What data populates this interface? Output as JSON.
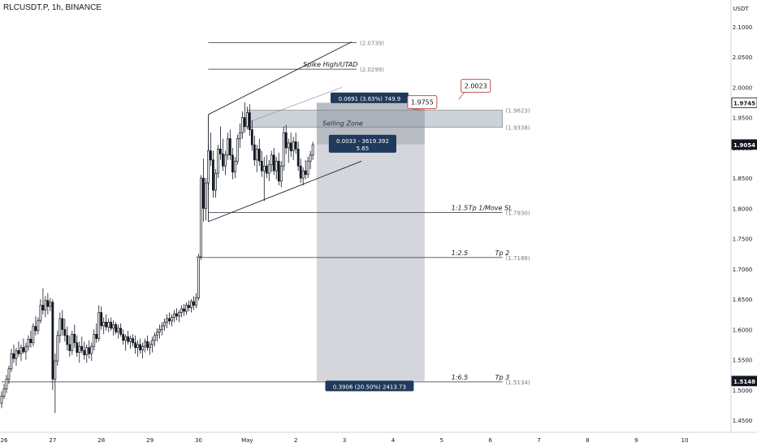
{
  "header": {
    "symbol": "RLCUSDT.P, 1h, BINANCE"
  },
  "price_axis": {
    "unit": "USDT"
  },
  "chart_data": {
    "type": "candlestick",
    "title": "RLCUSDT.P, 1h, BINANCE",
    "y_unit": "USDT",
    "ylim": [
      1.43,
      2.12
    ],
    "y_ticks": [
      "2.1000",
      "2.0500",
      "2.0000",
      "1.9500",
      "1.9000",
      "1.8500",
      "1.8000",
      "1.7500",
      "1.7000",
      "1.6500",
      "1.6000",
      "1.5500",
      "1.5000",
      "1.4500"
    ],
    "x_ticks": [
      "26",
      "27",
      "28",
      "29",
      "30",
      "May",
      "2",
      "3",
      "4",
      "5",
      "6",
      "7",
      "8",
      "9",
      "10"
    ],
    "x_tick_days": [
      0,
      1,
      2,
      3,
      4,
      5,
      6,
      7,
      8,
      9,
      10,
      11,
      12,
      13,
      14
    ],
    "xlim_days": [
      0.0,
      15.0
    ],
    "colors": {
      "up": "#26a69a",
      "down": "#ef5350",
      "candle": "#131722",
      "line": "#2a2e39",
      "zone": "#9aa5b1",
      "projection": "#b2b5be",
      "label_bg": "#131722",
      "label_fg": "#ffffff"
    },
    "candles": [
      {
        "t": 0.0,
        "o": 1.478,
        "h": 1.498,
        "l": 1.47,
        "c": 1.49
      },
      {
        "t": 0.05,
        "o": 1.49,
        "h": 1.51,
        "l": 1.485,
        "c": 1.502
      },
      {
        "t": 0.1,
        "o": 1.502,
        "h": 1.525,
        "l": 1.495,
        "c": 1.518
      },
      {
        "t": 0.15,
        "o": 1.518,
        "h": 1.54,
        "l": 1.51,
        "c": 1.535
      },
      {
        "t": 0.2,
        "o": 1.535,
        "h": 1.568,
        "l": 1.53,
        "c": 1.56
      },
      {
        "t": 0.25,
        "o": 1.56,
        "h": 1.575,
        "l": 1.545,
        "c": 1.552
      },
      {
        "t": 0.3,
        "o": 1.552,
        "h": 1.57,
        "l": 1.54,
        "c": 1.565
      },
      {
        "t": 0.35,
        "o": 1.565,
        "h": 1.58,
        "l": 1.555,
        "c": 1.56
      },
      {
        "t": 0.4,
        "o": 1.56,
        "h": 1.575,
        "l": 1.548,
        "c": 1.57
      },
      {
        "t": 0.45,
        "o": 1.57,
        "h": 1.585,
        "l": 1.56,
        "c": 1.563
      },
      {
        "t": 0.5,
        "o": 1.563,
        "h": 1.578,
        "l": 1.55,
        "c": 1.572
      },
      {
        "t": 0.55,
        "o": 1.572,
        "h": 1.59,
        "l": 1.565,
        "c": 1.584
      },
      {
        "t": 0.6,
        "o": 1.584,
        "h": 1.598,
        "l": 1.57,
        "c": 1.578
      },
      {
        "t": 0.65,
        "o": 1.578,
        "h": 1.61,
        "l": 1.572,
        "c": 1.605
      },
      {
        "t": 0.7,
        "o": 1.605,
        "h": 1.622,
        "l": 1.59,
        "c": 1.598
      },
      {
        "t": 0.75,
        "o": 1.598,
        "h": 1.62,
        "l": 1.592,
        "c": 1.615
      },
      {
        "t": 0.8,
        "o": 1.615,
        "h": 1.65,
        "l": 1.61,
        "c": 1.64
      },
      {
        "t": 0.85,
        "o": 1.64,
        "h": 1.668,
        "l": 1.625,
        "c": 1.632
      },
      {
        "t": 0.9,
        "o": 1.632,
        "h": 1.655,
        "l": 1.62,
        "c": 1.648
      },
      {
        "t": 0.95,
        "o": 1.648,
        "h": 1.66,
        "l": 1.625,
        "c": 1.638
      },
      {
        "t": 1.0,
        "o": 1.638,
        "h": 1.652,
        "l": 1.63,
        "c": 1.645
      },
      {
        "t": 1.05,
        "o": 1.645,
        "h": 1.65,
        "l": 1.5,
        "c": 1.518
      },
      {
        "t": 1.1,
        "o": 1.518,
        "h": 1.56,
        "l": 1.462,
        "c": 1.548
      },
      {
        "t": 1.15,
        "o": 1.548,
        "h": 1.598,
        "l": 1.54,
        "c": 1.59
      },
      {
        "t": 1.2,
        "o": 1.59,
        "h": 1.628,
        "l": 1.578,
        "c": 1.618
      },
      {
        "t": 1.25,
        "o": 1.618,
        "h": 1.632,
        "l": 1.59,
        "c": 1.6
      },
      {
        "t": 1.3,
        "o": 1.6,
        "h": 1.618,
        "l": 1.58,
        "c": 1.59
      },
      {
        "t": 1.35,
        "o": 1.59,
        "h": 1.605,
        "l": 1.565,
        "c": 1.575
      },
      {
        "t": 1.4,
        "o": 1.575,
        "h": 1.59,
        "l": 1.555,
        "c": 1.565
      },
      {
        "t": 1.45,
        "o": 1.565,
        "h": 1.598,
        "l": 1.558,
        "c": 1.592
      },
      {
        "t": 1.5,
        "o": 1.592,
        "h": 1.608,
        "l": 1.57,
        "c": 1.578
      },
      {
        "t": 1.55,
        "o": 1.578,
        "h": 1.59,
        "l": 1.555,
        "c": 1.562
      },
      {
        "t": 1.6,
        "o": 1.562,
        "h": 1.58,
        "l": 1.545,
        "c": 1.572
      },
      {
        "t": 1.65,
        "o": 1.572,
        "h": 1.588,
        "l": 1.56,
        "c": 1.565
      },
      {
        "t": 1.7,
        "o": 1.565,
        "h": 1.58,
        "l": 1.55,
        "c": 1.558
      },
      {
        "t": 1.75,
        "o": 1.558,
        "h": 1.575,
        "l": 1.545,
        "c": 1.57
      },
      {
        "t": 1.8,
        "o": 1.57,
        "h": 1.582,
        "l": 1.552,
        "c": 1.56
      },
      {
        "t": 1.85,
        "o": 1.56,
        "h": 1.578,
        "l": 1.548,
        "c": 1.572
      },
      {
        "t": 1.9,
        "o": 1.572,
        "h": 1.6,
        "l": 1.565,
        "c": 1.592
      },
      {
        "t": 1.95,
        "o": 1.592,
        "h": 1.61,
        "l": 1.578,
        "c": 1.585
      },
      {
        "t": 2.0,
        "o": 1.585,
        "h": 1.64,
        "l": 1.58,
        "c": 1.628
      },
      {
        "t": 2.05,
        "o": 1.628,
        "h": 1.638,
        "l": 1.6,
        "c": 1.606
      },
      {
        "t": 2.1,
        "o": 1.606,
        "h": 1.62,
        "l": 1.592,
        "c": 1.612
      },
      {
        "t": 2.15,
        "o": 1.612,
        "h": 1.625,
        "l": 1.598,
        "c": 1.604
      },
      {
        "t": 2.2,
        "o": 1.604,
        "h": 1.618,
        "l": 1.595,
        "c": 1.612
      },
      {
        "t": 2.25,
        "o": 1.612,
        "h": 1.62,
        "l": 1.598,
        "c": 1.602
      },
      {
        "t": 2.3,
        "o": 1.602,
        "h": 1.615,
        "l": 1.59,
        "c": 1.608
      },
      {
        "t": 2.35,
        "o": 1.608,
        "h": 1.612,
        "l": 1.592,
        "c": 1.596
      },
      {
        "t": 2.4,
        "o": 1.596,
        "h": 1.608,
        "l": 1.585,
        "c": 1.602
      },
      {
        "t": 2.45,
        "o": 1.602,
        "h": 1.61,
        "l": 1.588,
        "c": 1.592
      },
      {
        "t": 2.5,
        "o": 1.592,
        "h": 1.6,
        "l": 1.575,
        "c": 1.582
      },
      {
        "t": 2.55,
        "o": 1.582,
        "h": 1.592,
        "l": 1.565,
        "c": 1.588
      },
      {
        "t": 2.6,
        "o": 1.588,
        "h": 1.598,
        "l": 1.575,
        "c": 1.58
      },
      {
        "t": 2.65,
        "o": 1.58,
        "h": 1.59,
        "l": 1.568,
        "c": 1.585
      },
      {
        "t": 2.7,
        "o": 1.585,
        "h": 1.592,
        "l": 1.572,
        "c": 1.578
      },
      {
        "t": 2.75,
        "o": 1.578,
        "h": 1.59,
        "l": 1.56,
        "c": 1.57
      },
      {
        "t": 2.8,
        "o": 1.57,
        "h": 1.582,
        "l": 1.555,
        "c": 1.575
      },
      {
        "t": 2.85,
        "o": 1.575,
        "h": 1.585,
        "l": 1.56,
        "c": 1.566
      },
      {
        "t": 2.9,
        "o": 1.566,
        "h": 1.578,
        "l": 1.552,
        "c": 1.572
      },
      {
        "t": 2.95,
        "o": 1.572,
        "h": 1.585,
        "l": 1.562,
        "c": 1.58
      },
      {
        "t": 3.0,
        "o": 1.58,
        "h": 1.59,
        "l": 1.565,
        "c": 1.57
      },
      {
        "t": 3.05,
        "o": 1.57,
        "h": 1.58,
        "l": 1.558,
        "c": 1.575
      },
      {
        "t": 3.1,
        "o": 1.575,
        "h": 1.588,
        "l": 1.562,
        "c": 1.582
      },
      {
        "t": 3.15,
        "o": 1.582,
        "h": 1.595,
        "l": 1.572,
        "c": 1.59
      },
      {
        "t": 3.2,
        "o": 1.59,
        "h": 1.602,
        "l": 1.58,
        "c": 1.596
      },
      {
        "t": 3.25,
        "o": 1.596,
        "h": 1.608,
        "l": 1.585,
        "c": 1.6
      },
      {
        "t": 3.3,
        "o": 1.6,
        "h": 1.612,
        "l": 1.59,
        "c": 1.606
      },
      {
        "t": 3.35,
        "o": 1.606,
        "h": 1.618,
        "l": 1.598,
        "c": 1.612
      },
      {
        "t": 3.4,
        "o": 1.612,
        "h": 1.625,
        "l": 1.602,
        "c": 1.618
      },
      {
        "t": 3.45,
        "o": 1.618,
        "h": 1.628,
        "l": 1.608,
        "c": 1.614
      },
      {
        "t": 3.5,
        "o": 1.614,
        "h": 1.625,
        "l": 1.605,
        "c": 1.62
      },
      {
        "t": 3.55,
        "o": 1.62,
        "h": 1.632,
        "l": 1.612,
        "c": 1.626
      },
      {
        "t": 3.6,
        "o": 1.626,
        "h": 1.635,
        "l": 1.615,
        "c": 1.622
      },
      {
        "t": 3.65,
        "o": 1.622,
        "h": 1.632,
        "l": 1.612,
        "c": 1.628
      },
      {
        "t": 3.7,
        "o": 1.628,
        "h": 1.64,
        "l": 1.62,
        "c": 1.634
      },
      {
        "t": 3.75,
        "o": 1.634,
        "h": 1.642,
        "l": 1.622,
        "c": 1.63
      },
      {
        "t": 3.8,
        "o": 1.63,
        "h": 1.645,
        "l": 1.624,
        "c": 1.64
      },
      {
        "t": 3.85,
        "o": 1.64,
        "h": 1.648,
        "l": 1.63,
        "c": 1.636
      },
      {
        "t": 3.9,
        "o": 1.636,
        "h": 1.65,
        "l": 1.628,
        "c": 1.646
      },
      {
        "t": 3.95,
        "o": 1.646,
        "h": 1.655,
        "l": 1.632,
        "c": 1.64
      },
      {
        "t": 4.0,
        "o": 1.64,
        "h": 1.66,
        "l": 1.635,
        "c": 1.652
      },
      {
        "t": 4.05,
        "o": 1.652,
        "h": 1.725,
        "l": 1.648,
        "c": 1.72
      },
      {
        "t": 4.1,
        "o": 1.72,
        "h": 1.855,
        "l": 1.715,
        "c": 1.85
      },
      {
        "t": 4.15,
        "o": 1.85,
        "h": 1.882,
        "l": 1.778,
        "c": 1.8
      },
      {
        "t": 4.2,
        "o": 1.8,
        "h": 1.85,
        "l": 1.78,
        "c": 1.842
      },
      {
        "t": 4.25,
        "o": 1.842,
        "h": 1.905,
        "l": 1.83,
        "c": 1.895
      },
      {
        "t": 4.3,
        "o": 1.895,
        "h": 1.925,
        "l": 1.87,
        "c": 1.88
      },
      {
        "t": 4.35,
        "o": 1.88,
        "h": 1.895,
        "l": 1.818,
        "c": 1.83
      },
      {
        "t": 4.4,
        "o": 1.83,
        "h": 1.865,
        "l": 1.818,
        "c": 1.858
      },
      {
        "t": 4.45,
        "o": 1.858,
        "h": 1.905,
        "l": 1.85,
        "c": 1.898
      },
      {
        "t": 4.5,
        "o": 1.898,
        "h": 1.935,
        "l": 1.88,
        "c": 1.89
      },
      {
        "t": 4.55,
        "o": 1.89,
        "h": 1.915,
        "l": 1.862,
        "c": 1.87
      },
      {
        "t": 4.6,
        "o": 1.87,
        "h": 1.895,
        "l": 1.855,
        "c": 1.888
      },
      {
        "t": 4.65,
        "o": 1.888,
        "h": 1.925,
        "l": 1.88,
        "c": 1.915
      },
      {
        "t": 4.7,
        "o": 1.915,
        "h": 1.93,
        "l": 1.88,
        "c": 1.888
      },
      {
        "t": 4.75,
        "o": 1.888,
        "h": 1.9,
        "l": 1.848,
        "c": 1.86
      },
      {
        "t": 4.8,
        "o": 1.86,
        "h": 1.885,
        "l": 1.85,
        "c": 1.878
      },
      {
        "t": 4.85,
        "o": 1.878,
        "h": 1.922,
        "l": 1.872,
        "c": 1.915
      },
      {
        "t": 4.9,
        "o": 1.915,
        "h": 1.94,
        "l": 1.9,
        "c": 1.925
      },
      {
        "t": 4.95,
        "o": 1.925,
        "h": 1.96,
        "l": 1.915,
        "c": 1.95
      },
      {
        "t": 5.0,
        "o": 1.95,
        "h": 1.975,
        "l": 1.925,
        "c": 1.935
      },
      {
        "t": 5.05,
        "o": 1.935,
        "h": 1.968,
        "l": 1.93,
        "c": 1.958
      },
      {
        "t": 5.1,
        "o": 1.958,
        "h": 1.972,
        "l": 1.92,
        "c": 1.93
      },
      {
        "t": 5.15,
        "o": 1.93,
        "h": 1.945,
        "l": 1.895,
        "c": 1.905
      },
      {
        "t": 5.2,
        "o": 1.905,
        "h": 1.92,
        "l": 1.87,
        "c": 1.88
      },
      {
        "t": 5.25,
        "o": 1.88,
        "h": 1.905,
        "l": 1.86,
        "c": 1.898
      },
      {
        "t": 5.3,
        "o": 1.898,
        "h": 1.915,
        "l": 1.87,
        "c": 1.878
      },
      {
        "t": 5.35,
        "o": 1.878,
        "h": 1.895,
        "l": 1.852,
        "c": 1.862
      },
      {
        "t": 5.4,
        "o": 1.862,
        "h": 1.885,
        "l": 1.812,
        "c": 1.87
      },
      {
        "t": 5.45,
        "o": 1.87,
        "h": 1.888,
        "l": 1.85,
        "c": 1.858
      },
      {
        "t": 5.5,
        "o": 1.858,
        "h": 1.88,
        "l": 1.845,
        "c": 1.872
      },
      {
        "t": 5.55,
        "o": 1.872,
        "h": 1.895,
        "l": 1.86,
        "c": 1.888
      },
      {
        "t": 5.6,
        "o": 1.888,
        "h": 1.9,
        "l": 1.855,
        "c": 1.862
      },
      {
        "t": 5.65,
        "o": 1.862,
        "h": 1.885,
        "l": 1.848,
        "c": 1.878
      },
      {
        "t": 5.7,
        "o": 1.878,
        "h": 1.892,
        "l": 1.838,
        "c": 1.845
      },
      {
        "t": 5.75,
        "o": 1.845,
        "h": 1.878,
        "l": 1.835,
        "c": 1.87
      },
      {
        "t": 5.8,
        "o": 1.87,
        "h": 1.935,
        "l": 1.862,
        "c": 1.925
      },
      {
        "t": 5.85,
        "o": 1.925,
        "h": 1.938,
        "l": 1.89,
        "c": 1.9
      },
      {
        "t": 5.9,
        "o": 1.9,
        "h": 1.915,
        "l": 1.875,
        "c": 1.908
      },
      {
        "t": 5.95,
        "o": 1.908,
        "h": 1.925,
        "l": 1.885,
        "c": 1.895
      },
      {
        "t": 6.0,
        "o": 1.895,
        "h": 1.918,
        "l": 1.88,
        "c": 1.91
      },
      {
        "t": 6.05,
        "o": 1.91,
        "h": 1.925,
        "l": 1.89,
        "c": 1.898
      },
      {
        "t": 6.1,
        "o": 1.898,
        "h": 1.91,
        "l": 1.862,
        "c": 1.87
      },
      {
        "t": 6.15,
        "o": 1.87,
        "h": 1.882,
        "l": 1.842,
        "c": 1.85
      },
      {
        "t": 6.2,
        "o": 1.85,
        "h": 1.868,
        "l": 1.838,
        "c": 1.862
      },
      {
        "t": 6.25,
        "o": 1.862,
        "h": 1.88,
        "l": 1.848,
        "c": 1.856
      },
      {
        "t": 6.3,
        "o": 1.856,
        "h": 1.885,
        "l": 1.85,
        "c": 1.878
      },
      {
        "t": 6.35,
        "o": 1.878,
        "h": 1.895,
        "l": 1.865,
        "c": 1.888
      },
      {
        "t": 6.4,
        "o": 1.888,
        "h": 1.91,
        "l": 1.88,
        "c": 1.905
      }
    ],
    "annotations": {
      "channel": {
        "upper": [
          [
            4.25,
            1.955
          ],
          [
            7.2,
            2.075
          ]
        ],
        "lower": [
          [
            4.25,
            1.778
          ],
          [
            7.4,
            1.878
          ]
        ],
        "left": [
          [
            4.25,
            1.778
          ],
          [
            4.25,
            1.955
          ]
        ]
      },
      "mid_line": [
        [
          5.0,
          1.94
        ],
        [
          7.0,
          2.0
        ]
      ],
      "hlines": [
        {
          "y": 2.0739,
          "x0": 4.25,
          "x1": 7.3,
          "label": "(2.0739)",
          "name": ""
        },
        {
          "y": 2.0299,
          "x0": 4.25,
          "x1": 7.3,
          "label": "(2.0299)",
          "name": "Spike High/UTAD",
          "name_at": 6.2
        },
        {
          "y": 1.793,
          "x0": 4.25,
          "x1": 10.3,
          "label": "(1.7930)",
          "name": "Tp 1/Move SL",
          "name_at": 9.6,
          "ratio": "1:1.5",
          "ratio_at": 9.25
        },
        {
          "y": 1.7188,
          "x0": 4.0,
          "x1": 10.3,
          "label": "(1.7188)",
          "name": "Tp 2",
          "name_at": 10.15,
          "ratio": "1:2.5",
          "ratio_at": 9.25
        },
        {
          "y": 1.5134,
          "x0": 0.0,
          "x1": 10.3,
          "label": "(1.5134)",
          "name": "Tp 3",
          "name_at": 10.15,
          "ratio": "1:6.5",
          "ratio_at": 9.25
        }
      ],
      "selling_zone": {
        "y_top": 1.9623,
        "y_bottom": 1.9338,
        "x0": 5.05,
        "x1": 10.3,
        "label": "Selling Zone",
        "label_at": 6.6,
        "top_label": "(1.9623)",
        "bottom_label": "(1.9338)"
      },
      "short_position": {
        "x0": 6.48,
        "x1": 8.7,
        "entry": 1.9054,
        "stop": 1.9745,
        "target": 1.5148
      },
      "position_labels": {
        "risk": "0.0691 (3.63%) 749.9",
        "entry_line1": "0.0033 - 3619.392",
        "entry_line2": "5.65",
        "target": "0.3906 (20.50%) 2413.73"
      },
      "callouts": [
        {
          "text": "1.9755",
          "at": [
            8.65,
            1.9755
          ],
          "anchor": [
            8.65,
            1.962
          ]
        },
        {
          "text": "2.0023",
          "at": [
            9.75,
            2.0023
          ],
          "anchor": [
            9.4,
            1.98
          ]
        }
      ],
      "price_badges": [
        {
          "text": "1.9745",
          "y": 1.9745,
          "style": "light"
        },
        {
          "text": "1.9054",
          "y": 1.9054,
          "style": "dark"
        },
        {
          "text": "1.5148",
          "y": 1.5148,
          "style": "dark"
        }
      ]
    }
  }
}
